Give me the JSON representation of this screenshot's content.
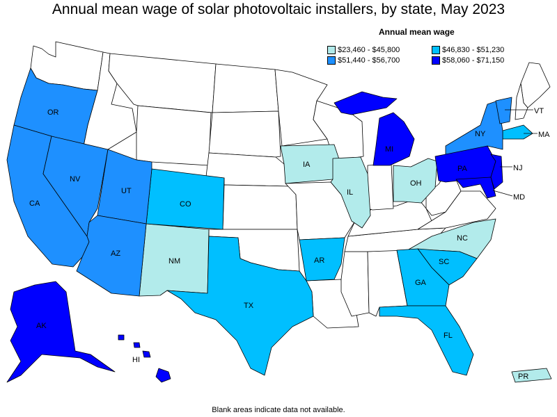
{
  "title": "Annual mean wage of solar photovoltaic installers, by state, May 2023",
  "legend": {
    "title": "Annual mean wage",
    "items": [
      {
        "range": "$23,460 - $45,800",
        "color": "#b2ebeb"
      },
      {
        "range": "$46,830 - $51,230",
        "color": "#00bfff"
      },
      {
        "range": "$51,440 - $56,700",
        "color": "#1e90ff"
      },
      {
        "range": "$58,060 - $71,150",
        "color": "#0000ff"
      }
    ]
  },
  "footnote": "Blank areas indicate data not available.",
  "colors": {
    "no_data": "#ffffff",
    "border": "#000000"
  },
  "states": {
    "OR": {
      "label": "OR",
      "tier": 2
    },
    "CA": {
      "label": "CA",
      "tier": 2
    },
    "NV": {
      "label": "NV",
      "tier": 2
    },
    "UT": {
      "label": "UT",
      "tier": 2
    },
    "AZ": {
      "label": "AZ",
      "tier": 2
    },
    "CO": {
      "label": "CO",
      "tier": 1
    },
    "NM": {
      "label": "NM",
      "tier": 0
    },
    "TX": {
      "label": "TX",
      "tier": 1
    },
    "IA": {
      "label": "IA",
      "tier": 0
    },
    "IL": {
      "label": "IL",
      "tier": 0
    },
    "AR": {
      "label": "AR",
      "tier": 1
    },
    "MI": {
      "label": "MI",
      "tier": 3
    },
    "OH": {
      "label": "OH",
      "tier": 0
    },
    "NY": {
      "label": "NY",
      "tier": 2
    },
    "PA": {
      "label": "PA",
      "tier": 3
    },
    "NJ": {
      "label": "NJ",
      "tier": 3
    },
    "MD": {
      "label": "MD",
      "tier": 3
    },
    "NC": {
      "label": "NC",
      "tier": 0
    },
    "SC": {
      "label": "SC",
      "tier": 1
    },
    "GA": {
      "label": "GA",
      "tier": 1
    },
    "FL": {
      "label": "FL",
      "tier": 1
    },
    "AK": {
      "label": "AK",
      "tier": 3
    },
    "HI": {
      "label": "HI",
      "tier": 3
    },
    "PR": {
      "label": "PR",
      "tier": 0
    },
    "VT": {
      "label": "VT",
      "tier": 2
    },
    "MA": {
      "label": "MA",
      "tier": 1
    }
  }
}
